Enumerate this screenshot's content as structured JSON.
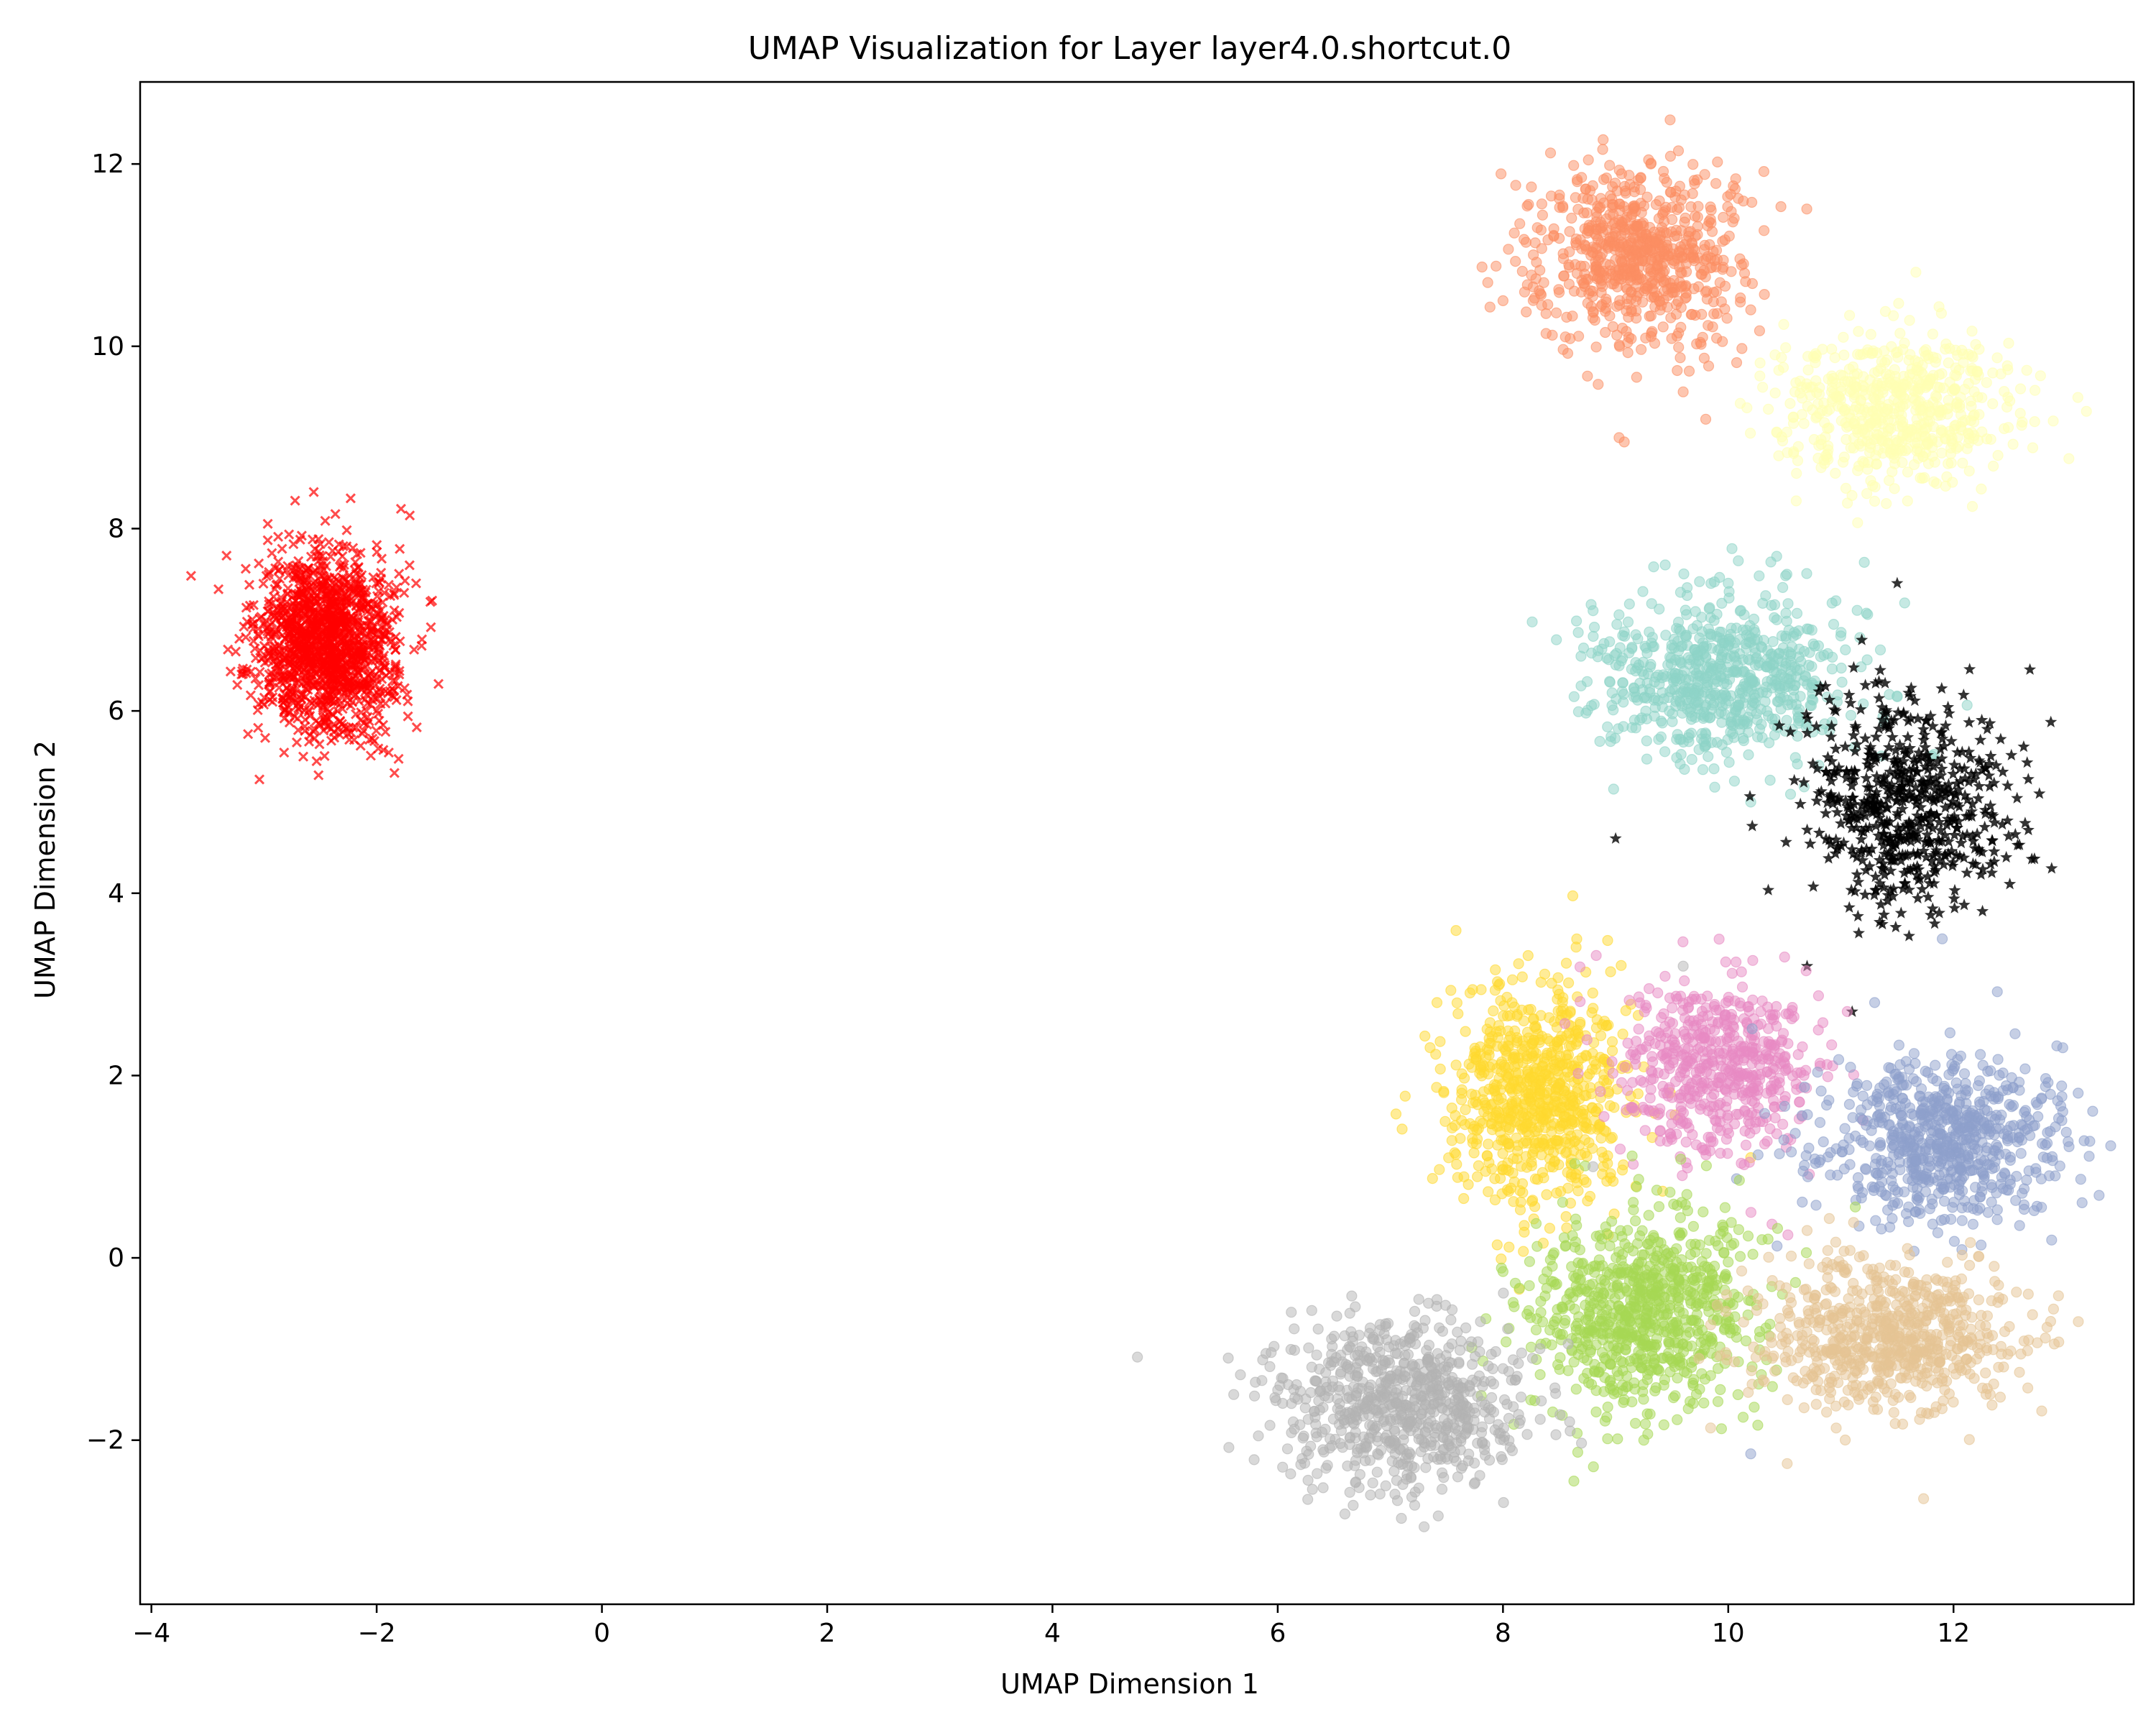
{
  "chart_data": {
    "type": "scatter",
    "title": "UMAP Visualization for Layer layer4.0.shortcut.0",
    "xlabel": "UMAP Dimension 1",
    "ylabel": "UMAP Dimension 2",
    "xlim": [
      -4.1,
      13.6
    ],
    "ylim": [
      -3.8,
      12.9
    ],
    "xticks": [
      -4,
      -2,
      0,
      2,
      4,
      6,
      8,
      10,
      12
    ],
    "yticks": [
      -2,
      0,
      2,
      4,
      6,
      8,
      10,
      12
    ],
    "grid": false,
    "legend": "none",
    "marker_alpha": 0.5,
    "clusters": [
      {
        "color": "#ff0000",
        "marker": "x",
        "alpha": 0.7,
        "count": 1400,
        "center": [
          -2.45,
          6.75
        ],
        "spread": [
          0.3,
          0.5
        ],
        "outliers": [
          [
            -1.65,
            7.4
          ],
          [
            -1.8,
            6.4
          ],
          [
            -3.2,
            6.4
          ],
          [
            -2.55,
            5.7
          ]
        ]
      },
      {
        "color": "#fc8d62",
        "marker": "o",
        "count": 700,
        "center": [
          9.2,
          11.0
        ],
        "spread": [
          0.45,
          0.5
        ],
        "outliers": [
          [
            8.0,
            10.5
          ],
          [
            9.8,
            9.2
          ],
          [
            10.2,
            10.4
          ],
          [
            9.6,
            9.5
          ]
        ]
      },
      {
        "color": "#ffffb3",
        "marker": "o",
        "count": 600,
        "center": [
          11.5,
          9.3
        ],
        "spread": [
          0.55,
          0.4
        ],
        "outliers": [
          [
            12.5,
            9.4
          ],
          [
            11.3,
            8.3
          ],
          [
            10.6,
            9.6
          ]
        ]
      },
      {
        "color": "#8dd3c7",
        "marker": "o",
        "count": 700,
        "center": [
          9.95,
          6.35
        ],
        "spread": [
          0.55,
          0.45
        ],
        "outliers": [
          [
            8.8,
            7.1
          ],
          [
            10.7,
            6.9
          ],
          [
            10.2,
            5.0
          ],
          [
            10.0,
            7.4
          ]
        ]
      },
      {
        "color": "#000000",
        "marker": "*",
        "alpha": 0.8,
        "count": 600,
        "center": [
          11.6,
          5.0
        ],
        "spread": [
          0.45,
          0.6
        ],
        "outliers": [
          [
            12.5,
            4.1
          ],
          [
            9.0,
            4.6
          ],
          [
            11.5,
            7.4
          ],
          [
            11.1,
            2.7
          ],
          [
            10.7,
            3.2
          ]
        ]
      },
      {
        "color": "#ffd92f",
        "marker": "o",
        "count": 750,
        "center": [
          8.3,
          1.8
        ],
        "spread": [
          0.4,
          0.6
        ],
        "outliers": [
          [
            7.75,
            2.3
          ],
          [
            8.6,
            0.6
          ],
          [
            9.2,
            1.8
          ],
          [
            10.2,
            1.1
          ]
        ]
      },
      {
        "color": "#e78ac3",
        "marker": "o",
        "count": 550,
        "center": [
          9.9,
          2.1
        ],
        "spread": [
          0.45,
          0.5
        ],
        "outliers": [
          [
            10.8,
            2.5
          ],
          [
            9.5,
            1.3
          ],
          [
            10.5,
            3.3
          ]
        ]
      },
      {
        "color": "#8da0cb",
        "marker": "o",
        "count": 700,
        "center": [
          11.9,
          1.3
        ],
        "spread": [
          0.55,
          0.45
        ],
        "outliers": [
          [
            12.85,
            0.9
          ],
          [
            10.2,
            -2.15
          ],
          [
            11.9,
            3.5
          ],
          [
            11.3,
            2.8
          ]
        ]
      },
      {
        "color": "#a6d854",
        "marker": "o",
        "count": 800,
        "center": [
          9.2,
          -0.6
        ],
        "spread": [
          0.5,
          0.55
        ],
        "outliers": [
          [
            8.0,
            -0.15
          ],
          [
            9.25,
            -2.0
          ],
          [
            10.3,
            0.2
          ]
        ]
      },
      {
        "color": "#e5c494",
        "marker": "o",
        "count": 700,
        "center": [
          11.4,
          -0.85
        ],
        "spread": [
          0.55,
          0.4
        ],
        "outliers": [
          [
            12.4,
            -1.2
          ],
          [
            12.4,
            -0.3
          ],
          [
            10.7,
            0.3
          ]
        ]
      },
      {
        "color": "#b3b3b3",
        "marker": "o",
        "count": 750,
        "center": [
          7.1,
          -1.6
        ],
        "spread": [
          0.55,
          0.45
        ],
        "outliers": [
          [
            6.0,
            -1.45
          ],
          [
            7.3,
            -2.95
          ],
          [
            9.6,
            3.2
          ],
          [
            8.8,
            1.0
          ],
          [
            7.8,
            -0.7
          ]
        ]
      }
    ]
  }
}
